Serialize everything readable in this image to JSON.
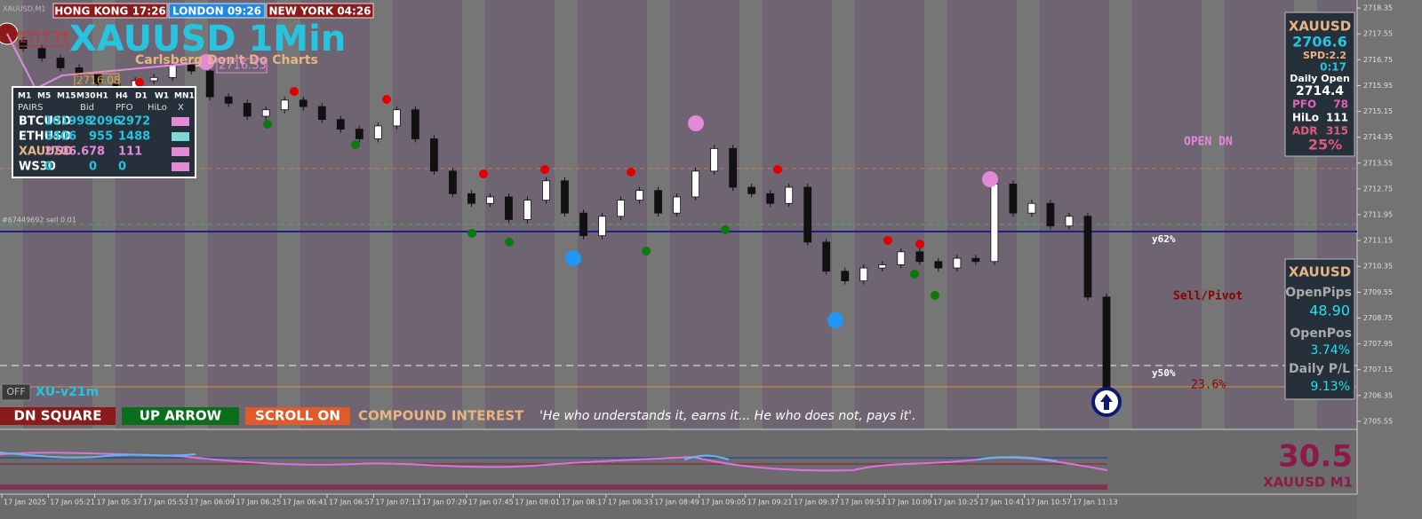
{
  "sessions": [
    "HONG KONG 17:26",
    "LONDON 09:26",
    "NEW YORK 04:26"
  ],
  "chart": {
    "symbol": "XAUUSD,M1",
    "title": "XAUUSD 1Min",
    "subtitle": "Carlsberg Don't Do Charts",
    "price_tags": [
      "2717.37",
      "2716.33",
      "2716.08"
    ],
    "order_label": "#67449692 sell 0.01",
    "levels": [
      "OPEN DN",
      "y62%",
      "Sell/Pivot",
      "y50%",
      "23.6%"
    ],
    "ylim": [
      2705.3,
      2718.6
    ],
    "yticks": [
      2718.35,
      2717.55,
      2716.75,
      2715.95,
      2715.15,
      2714.35,
      2713.55,
      2712.75,
      2711.95,
      2711.15,
      2710.35,
      2709.55,
      2708.75,
      2707.95,
      2707.15,
      2706.35,
      2705.55
    ],
    "time_labels": [
      "17 Jan 2025",
      "17 Jan 05:21",
      "17 Jan 05:37",
      "17 Jan 05:53",
      "17 Jan 06:09",
      "17 Jan 06:25",
      "17 Jan 06:41",
      "17 Jan 06:57",
      "17 Jan 07:13",
      "17 Jan 07:29",
      "17 Jan 07:45",
      "17 Jan 08:01",
      "17 Jan 08:17",
      "17 Jan 08:33",
      "17 Jan 08:49",
      "17 Jan 09:05",
      "17 Jan 09:21",
      "17 Jan 09:37",
      "17 Jan 09:53",
      "17 Jan 10:09",
      "17 Jan 10:25",
      "17 Jan 10:41",
      "17 Jan 10:57",
      "17 Jan 11:13"
    ],
    "closes": [
      2717.35,
      2717.1,
      2716.8,
      2716.5,
      2716.3,
      2716.0,
      2715.9,
      2716.1,
      2716.2,
      2716.6,
      2716.4,
      2715.6,
      2715.4,
      2715.0,
      2715.2,
      2715.5,
      2715.3,
      2714.9,
      2714.6,
      2714.3,
      2714.7,
      2715.2,
      2714.3,
      2713.3,
      2712.6,
      2712.3,
      2712.5,
      2711.8,
      2712.4,
      2713.0,
      2712.0,
      2711.3,
      2711.9,
      2712.4,
      2712.7,
      2712.0,
      2712.5,
      2713.3,
      2714.0,
      2712.8,
      2712.6,
      2712.3,
      2712.8,
      2711.1,
      2710.2,
      2709.9,
      2710.3,
      2710.4,
      2710.8,
      2710.5,
      2710.3,
      2710.6,
      2710.5,
      2712.9,
      2712.0,
      2712.3,
      2711.6,
      2711.9,
      2709.4,
      2706.6
    ]
  },
  "pairs_table": {
    "timeframes": [
      "M1",
      "M5",
      "M15",
      "M30",
      "H1",
      "H4",
      "D1",
      "W1",
      "MN1"
    ],
    "headers": [
      "PAIRS",
      "Bid",
      "PFO",
      "HiLo",
      "X"
    ],
    "rows": [
      [
        "BTCUSD",
        101998,
        2096,
        2972
      ],
      [
        "ETHUSD",
        3406,
        955,
        1488
      ],
      [
        "XAUUSD",
        2706.6,
        78,
        111
      ],
      [
        "WS30",
        0,
        0,
        0
      ]
    ]
  },
  "info_panel": {
    "symbol": "XAUUSD",
    "price": 2706.6,
    "spread": "SPD:2.2",
    "timer": "0:17",
    "daily_open_label": "Daily Open",
    "daily_open": 2714.4,
    "rows": [
      [
        "PFO",
        78
      ],
      [
        "HiLo",
        111
      ],
      [
        "ADR",
        315
      ]
    ],
    "adr_pct": "25%"
  },
  "position_panel": {
    "symbol": "XAUUSD",
    "rows": [
      [
        "OpenPips",
        "48.90"
      ],
      [
        "OpenPos",
        "3.74%"
      ],
      [
        "Daily P/L",
        "9.13%"
      ]
    ]
  },
  "toolbar": {
    "toggle": "OFF",
    "version": "XU-v21m",
    "buttons": [
      "DN SQUARE",
      "UP ARROW",
      "SCROLL ON"
    ],
    "tagline": "COMPOUND INTEREST",
    "quote": "'He who understands it, earns it... He who does not, pays it'."
  },
  "oscillator": {
    "value": 30.5,
    "label": "XAUUSD M1"
  }
}
